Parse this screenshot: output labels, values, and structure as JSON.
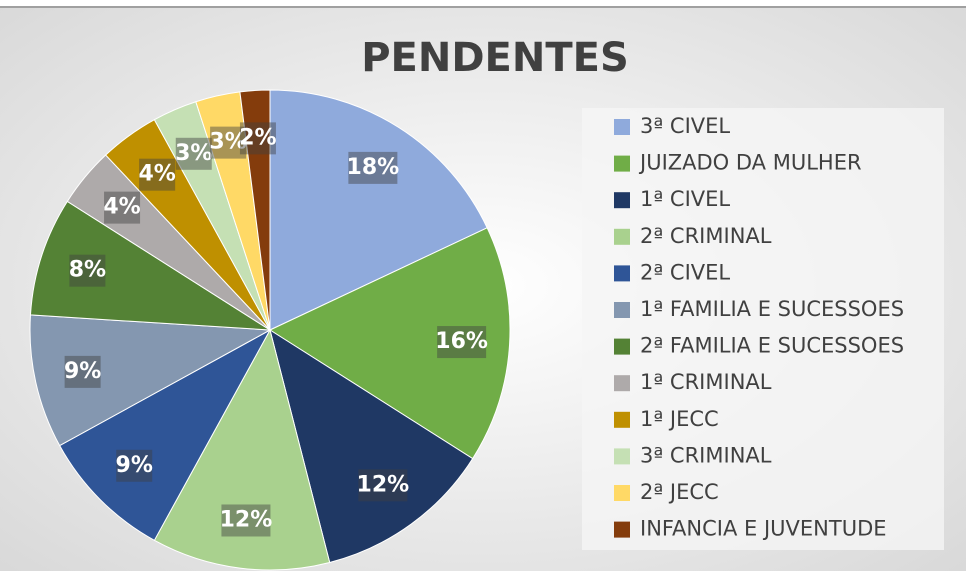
{
  "chart_data": {
    "type": "pie",
    "title": "PENDENTES",
    "categories": [
      "3ª CIVEL",
      "JUIZADO DA MULHER",
      "1ª CIVEL",
      "2ª CRIMINAL",
      "2ª CIVEL",
      "1ª FAMILIA E SUCESSOES",
      "2ª FAMILIA E SUCESSOES",
      "1ª CRIMINAL",
      "1ª JECC",
      "3ª CRIMINAL",
      "2ª JECC",
      "INFANCIA E JUVENTUDE"
    ],
    "values": [
      18,
      16,
      12,
      12,
      9,
      9,
      8,
      4,
      4,
      3,
      3,
      2
    ],
    "value_labels": [
      "18%",
      "16%",
      "12%",
      "12%",
      "9%",
      "9%",
      "8%",
      "4%",
      "4%",
      "3%",
      "3%",
      "2%"
    ],
    "colors": [
      "#8faadc",
      "#70ad47",
      "#1f3864",
      "#a9d18e",
      "#2f5597",
      "#8497b0",
      "#548235",
      "#aeaaaa",
      "#bf9000",
      "#c5e0b4",
      "#ffd966",
      "#843c0c"
    ],
    "legend": "right"
  }
}
